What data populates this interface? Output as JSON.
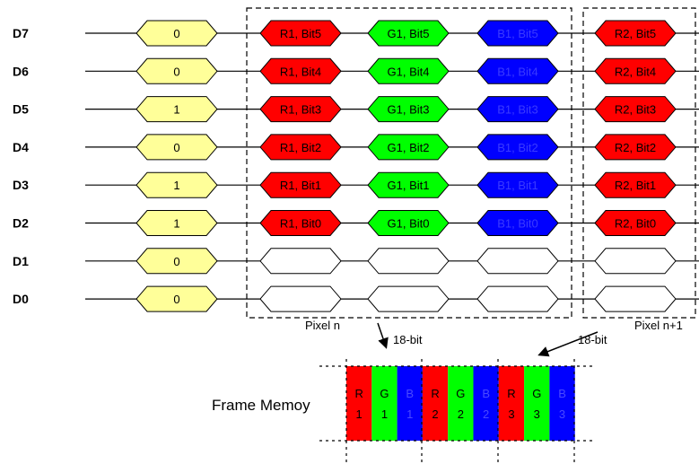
{
  "rows": [
    {
      "label": "D7",
      "prefix": "0",
      "bits": [
        "R1, Bit5",
        "G1, Bit5",
        "B1, Bit5",
        "R2, Bit5"
      ]
    },
    {
      "label": "D6",
      "prefix": "0",
      "bits": [
        "R1, Bit4",
        "G1, Bit4",
        "B1, Bit4",
        "R2, Bit4"
      ]
    },
    {
      "label": "D5",
      "prefix": "1",
      "bits": [
        "R1, Bit3",
        "G1, Bit3",
        "B1, Bit3",
        "R2, Bit3"
      ]
    },
    {
      "label": "D4",
      "prefix": "0",
      "bits": [
        "R1, Bit2",
        "G1, Bit2",
        "B1, Bit2",
        "R2, Bit2"
      ]
    },
    {
      "label": "D3",
      "prefix": "1",
      "bits": [
        "R1, Bit1",
        "G1, Bit1",
        "B1, Bit1",
        "R2, Bit1"
      ]
    },
    {
      "label": "D2",
      "prefix": "1",
      "bits": [
        "R1, Bit0",
        "G1, Bit0",
        "B1, Bit0",
        "R2, Bit0"
      ]
    },
    {
      "label": "D1",
      "prefix": "0",
      "bits": [
        "",
        "",
        "",
        ""
      ]
    },
    {
      "label": "D0",
      "prefix": "0",
      "bits": [
        "",
        "",
        "",
        ""
      ]
    }
  ],
  "pixel_labels": [
    "Pixel n",
    "Pixel n+1"
  ],
  "bus_labels": [
    "18-bit",
    "18-bit"
  ],
  "frame_memory": {
    "label": "Frame Memoy",
    "cells": [
      {
        "top": "R",
        "bottom": "1",
        "color": "#ff0000"
      },
      {
        "top": "G",
        "bottom": "1",
        "color": "#00ff00"
      },
      {
        "top": "B",
        "bottom": "1",
        "color": "#0000ff"
      },
      {
        "top": "R",
        "bottom": "2",
        "color": "#ff0000"
      },
      {
        "top": "G",
        "bottom": "2",
        "color": "#00ff00"
      },
      {
        "top": "B",
        "bottom": "2",
        "color": "#0000ff"
      },
      {
        "top": "R",
        "bottom": "3",
        "color": "#ff0000"
      },
      {
        "top": "G",
        "bottom": "3",
        "color": "#00ff00"
      },
      {
        "top": "B",
        "bottom": "3",
        "color": "#0000ff"
      }
    ]
  },
  "colors": {
    "prefix": "#ffff99",
    "red": "#ff0000",
    "green": "#00ff00",
    "blue": "#0000ff",
    "empty": "#ffffff"
  }
}
